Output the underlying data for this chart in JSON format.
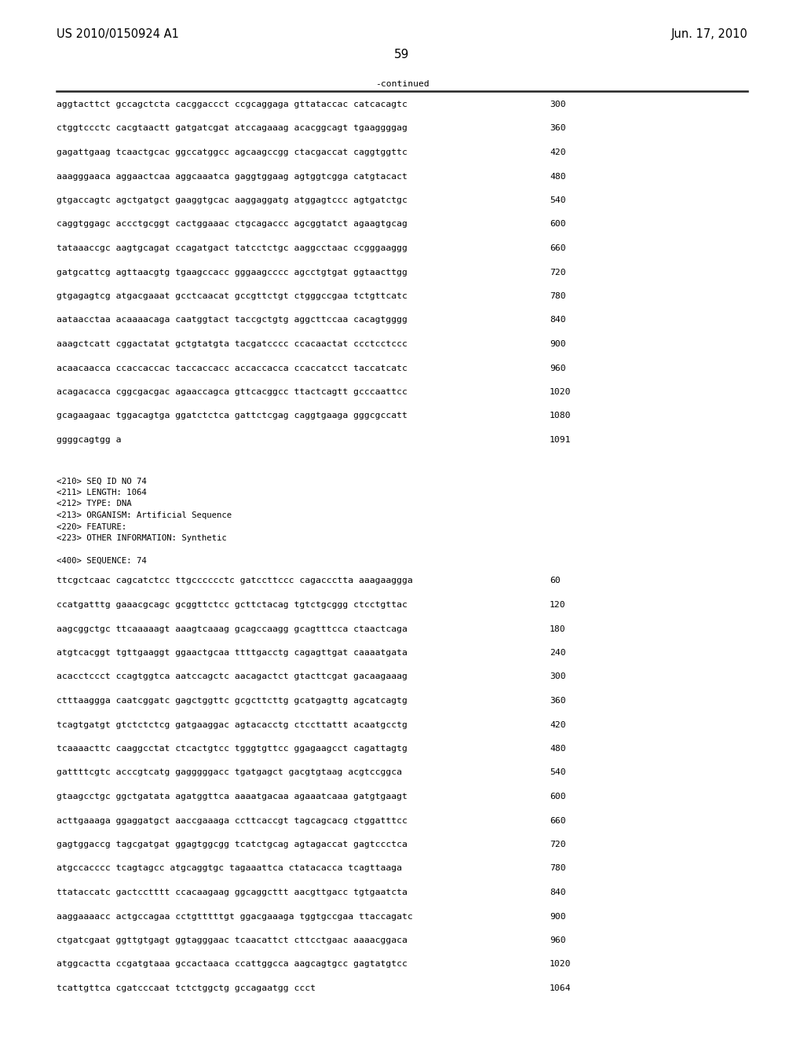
{
  "header_left": "US 2010/0150924 A1",
  "header_right": "Jun. 17, 2010",
  "page_number": "59",
  "continued_label": "-continued",
  "background_color": "#ffffff",
  "text_color": "#000000",
  "font_size": 8.2,
  "header_font_size": 10.5,
  "page_num_font_size": 11,
  "section1_lines": [
    [
      "aggtacttct gccagctcta cacggaccct ccgcaggaga gttataccac catcacagtc",
      "300"
    ],
    [
      "ctggtccctc cacgtaactt gatgatcgat atccagaaag acacggcagt tgaaggggag",
      "360"
    ],
    [
      "gagattgaag tcaactgcac ggccatggcc agcaagccgg ctacgaccat caggtggttc",
      "420"
    ],
    [
      "aaagggaaca aggaactcaa aggcaaatca gaggtggaag agtggtcgga catgtacact",
      "480"
    ],
    [
      "gtgaccagtc agctgatgct gaaggtgcac aaggaggatg atggagtccc agtgatctgc",
      "540"
    ],
    [
      "caggtggagc accctgcggt cactggaaac ctgcagaccc agcggtatct agaagtgcag",
      "600"
    ],
    [
      "tataaaccgc aagtgcagat ccagatgact tatcctctgc aaggcctaac ccgggaaggg",
      "660"
    ],
    [
      "gatgcattcg agttaacgtg tgaagccacc gggaagcccc agcctgtgat ggtaacttgg",
      "720"
    ],
    [
      "gtgagagtcg atgacgaaat gcctcaacat gccgttctgt ctgggccgaa tctgttcatc",
      "780"
    ],
    [
      "aataacctaa acaaaacaga caatggtact taccgctgtg aggcttccaa cacagtgggg",
      "840"
    ],
    [
      "aaagctcatt cggactatat gctgtatgta tacgatcccc ccacaactat ccctcctccc",
      "900"
    ],
    [
      "acaacaacca ccaccaccac taccaccacc accaccacca ccaccatcct taccatcatc",
      "960"
    ],
    [
      "acagacacca cggcgacgac agaaccagca gttcacggcc ttactcagtt gcccaattcc",
      "1020"
    ],
    [
      "gcagaagaac tggacagtga ggatctctca gattctcgag caggtgaaga gggcgccatt",
      "1080"
    ],
    [
      "ggggcagtgg a",
      "1091"
    ]
  ],
  "meta_lines": [
    "<210> SEQ ID NO 74",
    "<211> LENGTH: 1064",
    "<212> TYPE: DNA",
    "<213> ORGANISM: Artificial Sequence",
    "<220> FEATURE:",
    "<223> OTHER INFORMATION: Synthetic"
  ],
  "sequence_label": "<400> SEQUENCE: 74",
  "section2_lines": [
    [
      "ttcgctcaac cagcatctcc ttgcccccctc gatccttccc cagaccctta aaagaaggga",
      "60"
    ],
    [
      "ccatgatttg gaaacgcagc gcggttctcc gcttctacag tgtctgcggg ctcctgttac",
      "120"
    ],
    [
      "aagcggctgc ttcaaaaagt aaagtcaaag gcagccaagg gcagtttcca ctaactcaga",
      "180"
    ],
    [
      "atgtcacggt tgttgaaggt ggaactgcaa ttttgacctg cagagttgat caaaatgata",
      "240"
    ],
    [
      "acacctccct ccagtggtca aatccagctc aacagactct gtacttcgat gacaagaaag",
      "300"
    ],
    [
      "ctttaaggga caatcggatc gagctggttc gcgcttcttg gcatgagttg agcatcagtg",
      "360"
    ],
    [
      "tcagtgatgt gtctctctcg gatgaaggac agtacacctg ctccttattt acaatgcctg",
      "420"
    ],
    [
      "tcaaaacttc caaggcctat ctcactgtcc tgggtgttcc ggagaagcct cagattagtg",
      "480"
    ],
    [
      "gattttcgtc acccgtcatg gagggggacc tgatgagct gacgtgtaag acgtccggca",
      "540"
    ],
    [
      "gtaagcctgc ggctgatata agatggttca aaaatgacaa agaaatcaaa gatgtgaagt",
      "600"
    ],
    [
      "acttgaaaga ggaggatgct aaccgaaaga ccttcaccgt tagcagcacg ctggatttcc",
      "660"
    ],
    [
      "gagtggaccg tagcgatgat ggagtggcgg tcatctgcag agtagaccat gagtccctca",
      "720"
    ],
    [
      "atgccacccc tcagtagcc atgcaggtgc tagaaattca ctatacacca tcagttaaga",
      "780"
    ],
    [
      "ttataccatc gactcctttt ccacaagaag ggcaggcttt aacgttgacc tgtgaatcta",
      "840"
    ],
    [
      "aaggaaaacc actgccagaa cctgtttttgt ggacgaaaga tggtgccgaa ttaccagatc",
      "900"
    ],
    [
      "ctgatcgaat ggttgtgagt ggtagggaac tcaacattct cttcctgaac aaaacggaca",
      "960"
    ],
    [
      "atggcactta ccgatgtaaa gccactaaca ccattggcca aagcagtgcc gagtatgtcc",
      "1020"
    ],
    [
      "tcattgttca cgatcccaat tctctggctg gccagaatgg ccct",
      "1064"
    ]
  ]
}
